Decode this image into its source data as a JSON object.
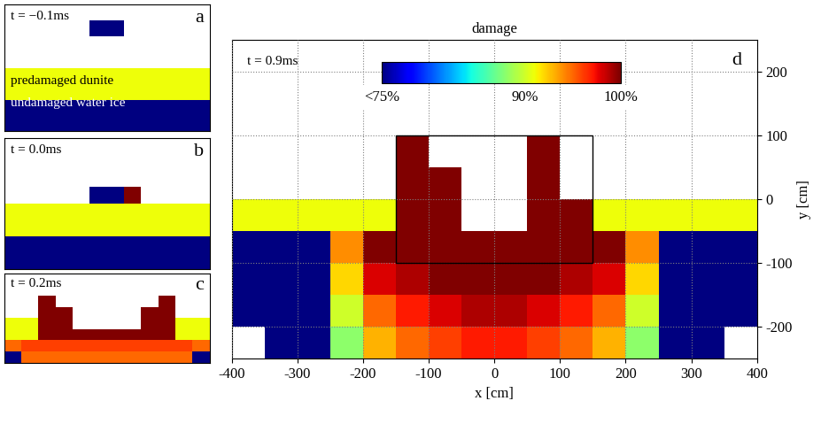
{
  "chart_data": [
    {
      "type": "heatmap",
      "label": "a",
      "time": "t = −0.1ms",
      "annotations": [
        "predamaged dunite",
        "undamaged water ice"
      ],
      "xlim": [
        -150,
        150
      ],
      "ylim": [
        -100,
        100
      ],
      "tick_labels": false,
      "cells": [
        [
          null,
          null,
          null,
          null,
          null,
          null,
          null,
          null,
          null,
          null,
          null,
          null
        ],
        [
          null,
          null,
          null,
          null,
          null,
          75,
          75,
          null,
          null,
          null,
          null,
          null
        ],
        [
          null,
          null,
          null,
          null,
          null,
          null,
          null,
          null,
          null,
          null,
          null,
          null
        ],
        [
          null,
          null,
          null,
          null,
          null,
          null,
          null,
          null,
          null,
          null,
          null,
          null
        ],
        [
          91,
          91,
          91,
          91,
          91,
          91,
          91,
          91,
          91,
          91,
          91,
          91
        ],
        [
          91,
          91,
          91,
          91,
          91,
          91,
          91,
          91,
          91,
          91,
          91,
          91
        ],
        [
          75,
          75,
          75,
          75,
          75,
          75,
          75,
          75,
          75,
          75,
          75,
          75
        ],
        [
          75,
          75,
          75,
          75,
          75,
          75,
          75,
          75,
          75,
          75,
          75,
          75
        ]
      ]
    },
    {
      "type": "heatmap",
      "label": "b",
      "time": "t = 0.0ms",
      "xlim": [
        -150,
        150
      ],
      "ylim": [
        -100,
        100
      ],
      "tick_labels": false,
      "cells": [
        [
          null,
          null,
          null,
          null,
          null,
          null,
          null,
          null,
          null,
          null,
          null,
          null
        ],
        [
          null,
          null,
          null,
          null,
          null,
          null,
          null,
          null,
          null,
          null,
          null,
          null
        ],
        [
          null,
          null,
          null,
          null,
          null,
          null,
          null,
          null,
          null,
          null,
          null,
          null
        ],
        [
          null,
          null,
          null,
          null,
          null,
          75,
          75,
          100,
          null,
          null,
          null,
          null
        ],
        [
          91,
          91,
          91,
          91,
          91,
          91,
          91,
          91,
          91,
          91,
          91,
          91
        ],
        [
          91,
          91,
          91,
          91,
          91,
          91,
          91,
          91,
          91,
          91,
          91,
          91
        ],
        [
          75,
          75,
          75,
          75,
          75,
          75,
          75,
          75,
          75,
          75,
          75,
          75
        ],
        [
          75,
          75,
          75,
          75,
          75,
          75,
          75,
          75,
          75,
          75,
          75,
          75
        ]
      ]
    },
    {
      "type": "heatmap",
      "label": "c",
      "time": "t = 0.2ms",
      "xlim": [
        -150,
        150
      ],
      "ylim": [
        -100,
        100
      ],
      "tick_labels": false,
      "cells": [
        [
          null,
          null,
          null,
          null,
          null,
          null,
          null,
          null,
          null,
          null,
          null,
          null
        ],
        [
          null,
          null,
          null,
          null,
          null,
          null,
          null,
          null,
          null,
          null,
          null,
          null
        ],
        [
          null,
          null,
          100,
          null,
          null,
          null,
          null,
          null,
          null,
          100,
          null,
          null
        ],
        [
          null,
          null,
          100,
          100,
          null,
          null,
          null,
          null,
          100,
          100,
          null,
          null
        ],
        [
          91,
          91,
          100,
          100,
          null,
          null,
          null,
          null,
          100,
          100,
          91,
          91
        ],
        [
          91,
          91,
          100,
          100,
          100,
          100,
          100,
          100,
          100,
          100,
          91,
          91
        ],
        [
          95,
          96,
          96,
          96,
          96,
          96,
          96,
          96,
          96,
          96,
          96,
          95
        ],
        [
          75,
          95,
          95,
          95,
          95,
          95,
          95,
          95,
          95,
          95,
          95,
          75
        ]
      ]
    },
    {
      "type": "heatmap",
      "label": "d",
      "time": "t = 0.9ms",
      "title": "damage",
      "xlabel": "x [cm]",
      "ylabel": "y [cm]",
      "xlim": [
        -400,
        400
      ],
      "ylim": [
        -250,
        250
      ],
      "xticks": [
        -400,
        -300,
        -200,
        -100,
        0,
        100,
        200,
        300,
        400
      ],
      "yticks": [
        -200,
        -100,
        0,
        100,
        200
      ],
      "grid": true,
      "zoom_box": {
        "x": [
          -150,
          150
        ],
        "y": [
          -100,
          100
        ]
      },
      "colorbar": {
        "range": [
          75,
          100
        ],
        "ticks": [
          {
            "value": 75,
            "label": "<75%"
          },
          {
            "value": 90,
            "label": "90%"
          },
          {
            "value": 100,
            "label": "100%"
          }
        ]
      },
      "cells": [
        [
          null,
          null,
          null,
          null,
          null,
          null,
          null,
          null,
          null,
          null,
          null,
          null,
          null,
          null,
          null,
          null
        ],
        [
          null,
          null,
          null,
          null,
          null,
          null,
          null,
          null,
          null,
          null,
          null,
          null,
          null,
          null,
          null,
          null
        ],
        [
          null,
          null,
          null,
          null,
          null,
          null,
          null,
          null,
          null,
          null,
          null,
          null,
          null,
          null,
          null,
          null
        ],
        [
          null,
          null,
          null,
          null,
          null,
          100,
          null,
          null,
          null,
          100,
          null,
          null,
          null,
          null,
          null,
          null
        ],
        [
          null,
          null,
          null,
          null,
          null,
          100,
          100,
          null,
          null,
          100,
          null,
          null,
          null,
          null,
          null,
          null
        ],
        [
          91,
          91,
          91,
          91,
          91,
          100,
          100,
          null,
          null,
          100,
          100,
          91,
          91,
          91,
          91,
          91
        ],
        [
          75,
          75,
          75,
          94,
          100,
          100,
          100,
          100,
          100,
          100,
          100,
          100,
          94,
          75,
          75,
          75
        ],
        [
          75,
          75,
          75,
          92,
          98,
          99,
          100,
          100,
          100,
          100,
          99,
          98,
          92,
          75,
          75,
          75
        ],
        [
          75,
          75,
          75,
          90,
          95,
          97,
          98,
          99,
          99,
          98,
          97,
          95,
          90,
          75,
          75,
          75
        ],
        [
          null,
          75,
          75,
          88,
          93,
          95,
          96,
          97,
          97,
          96,
          95,
          93,
          88,
          75,
          75,
          null
        ]
      ]
    }
  ]
}
